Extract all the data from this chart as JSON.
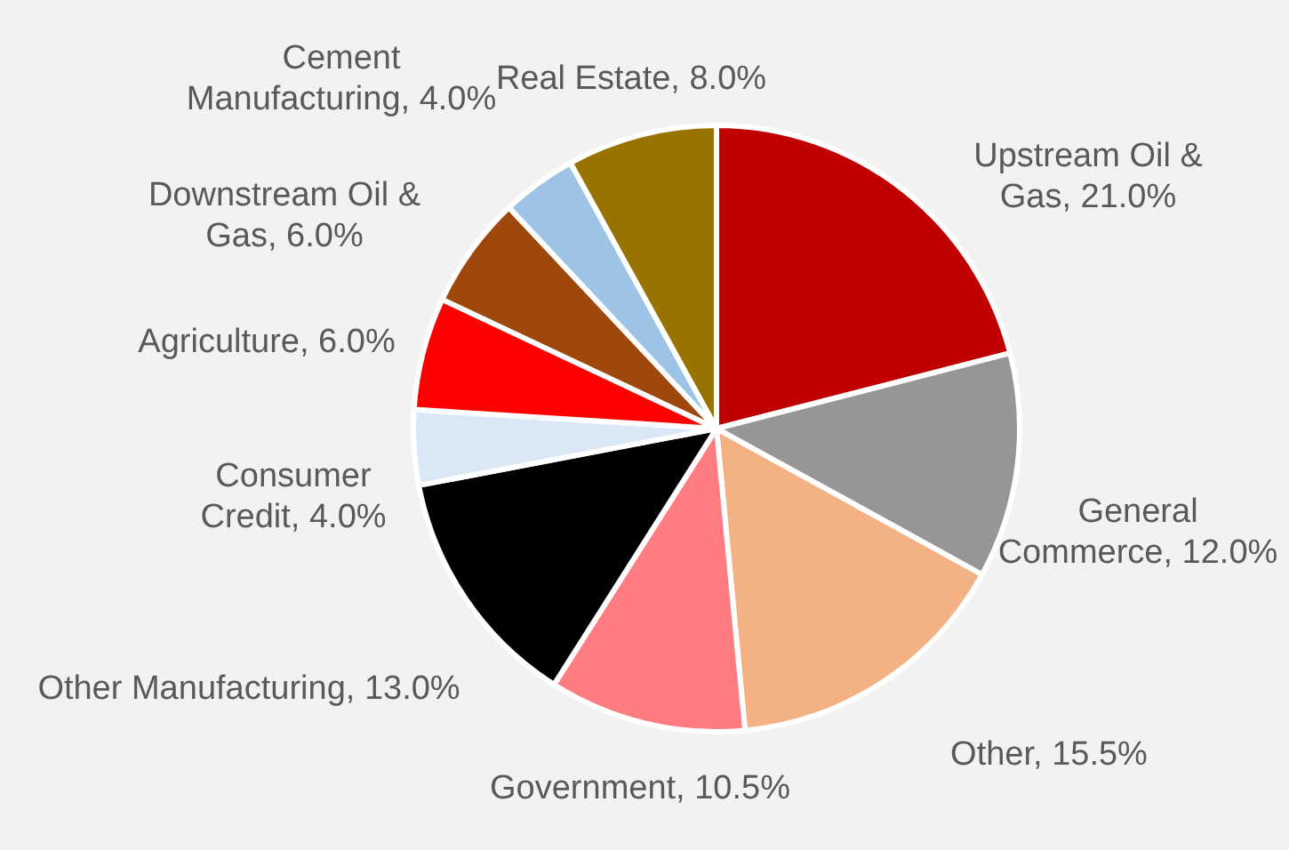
{
  "chart_data": {
    "type": "pie",
    "categories": [
      "Upstream Oil & Gas",
      "General Commerce",
      "Other",
      "Government",
      "Other Manufacturing",
      "Consumer Credit",
      "Agriculture",
      "Downstream Oil & Gas",
      "Cement Manufacturing",
      "Real Estate"
    ],
    "values": [
      21,
      12,
      15.5,
      10.5,
      13,
      4,
      6,
      6,
      4,
      8
    ],
    "value_labels": [
      "21.0%",
      "12.0%",
      "15.5%",
      "10.5%",
      "13.0%",
      "4.0%",
      "6.0%",
      "6.0%",
      "4.0%",
      "8.0%"
    ],
    "colors": [
      "#c00000",
      "#969696",
      "#f4b183",
      "#ff7c80",
      "#000000",
      "#dae8f5",
      "#ff0000",
      "#9e480e",
      "#9dc3e6",
      "#997300"
    ],
    "legend": false
  }
}
